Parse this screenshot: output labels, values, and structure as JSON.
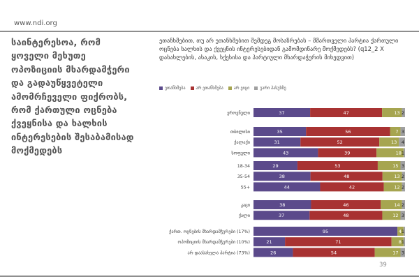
{
  "header": {
    "site": "www.ndi.org"
  },
  "main": {
    "title": "საინტერესოა, რომ ყოველი მეხუთე ოპოზიციის მხარდამჭერი და გადაუწყვეტელი ამომრჩეველი ფიქრობს, რომ ქართული ოცნება ქვეყნისა და ხალხის ინტერესების შესაბამისად მოქმედებს"
  },
  "question": "ეთანხმებით, თუ არ ეთანხმებით შემდეგ მოსაზრებას – მმართველი პარტია ქართული ოცნება ხალხის და ქვეყნის ინტერესებიდან გამომდინარე მოქმედებს? (q12_2 X დასახლების, ასაკის, სქესისა და პარტიული მხარდაჭერის მიხედვით)",
  "footer": {
    "page_number": "39"
  },
  "chart_data": {
    "type": "bar",
    "orientation": "horizontal",
    "stacked": "100%",
    "xlim": [
      0,
      100
    ],
    "legend_position": "top-left",
    "series": [
      {
        "name": "ეთანხმება",
        "color": "#5b4a8b"
      },
      {
        "name": "არ ეთანხმება",
        "color": "#a83232"
      },
      {
        "name": "არ ვიცი",
        "color": "#a6a550"
      },
      {
        "name": "უარი პასუხზე",
        "color": "#a0a0a0"
      }
    ],
    "groups": [
      {
        "rows": [
          {
            "label": "ეროვნული",
            "values": [
              37,
              47,
              13,
              2
            ]
          }
        ]
      },
      {
        "rows": [
          {
            "label": "თბილისი",
            "values": [
              35,
              56,
              7,
              3
            ]
          },
          {
            "label": "ქალაქი",
            "values": [
              31,
              52,
              13,
              4
            ]
          },
          {
            "label": "სოფელი",
            "values": [
              43,
              39,
              18,
              1
            ]
          }
        ]
      },
      {
        "rows": [
          {
            "label": "18-34",
            "values": [
              29,
              53,
              15,
              3
            ]
          },
          {
            "label": "35-54",
            "values": [
              38,
              48,
              13,
              2
            ]
          },
          {
            "label": "55+",
            "values": [
              44,
              42,
              12,
              2
            ]
          }
        ]
      },
      {
        "rows": [
          {
            "label": "კაცი",
            "values": [
              38,
              46,
              14,
              2
            ]
          },
          {
            "label": "ქალი",
            "values": [
              37,
              48,
              12,
              3
            ]
          }
        ]
      },
      {
        "rows": [
          {
            "label": "ქართ. ოცნების მხარდამჭერები (17%)",
            "values": [
              95,
              0,
              4,
              1
            ]
          },
          {
            "label": "ოპოზიციის მხარდამჭერები (10%)",
            "values": [
              21,
              71,
              8,
              1
            ]
          },
          {
            "label": "არ დაასახელა პარტია (73%)",
            "values": [
              26,
              54,
              17,
              3
            ]
          }
        ]
      }
    ]
  }
}
